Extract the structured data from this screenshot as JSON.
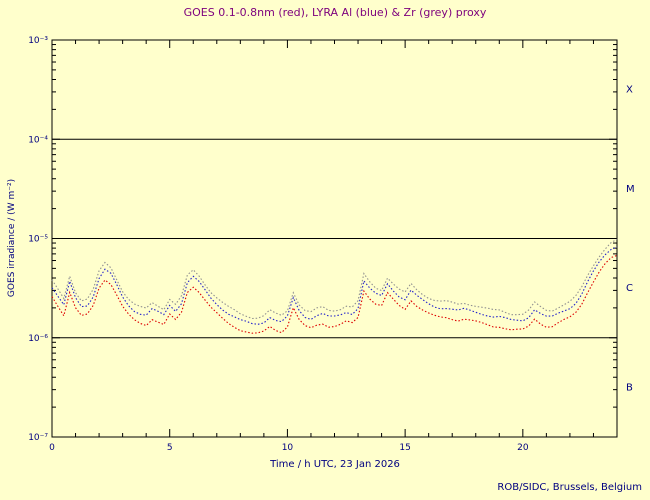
{
  "chart_data": {
    "type": "line",
    "title": "GOES 0.1-0.8nm (red), LYRA Al (blue) & Zr (grey) proxy",
    "xlabel": "Time / h UTC, 23 Jan 2026",
    "ylabel": "GOES irradiance / (W m⁻²)",
    "credit": "ROB/SIDC, Brussels, Belgium",
    "x_range": [
      0,
      24
    ],
    "y_log_range": [
      -7,
      -3
    ],
    "x_major_ticks": [
      0,
      5,
      10,
      15,
      20
    ],
    "y_tick_labels": [
      "10⁻³",
      "10⁻⁴",
      "10⁻⁵",
      "10⁻⁶",
      "10⁻⁷"
    ],
    "y_tick_exponents": [
      -3,
      -4,
      -5,
      -6,
      -7
    ],
    "boundary_exponents": [
      -4,
      -5,
      -6
    ],
    "class_bands": [
      {
        "label": "X",
        "mid_exponent": -3.5
      },
      {
        "label": "M",
        "mid_exponent": -4.5
      },
      {
        "label": "C",
        "mid_exponent": -5.5
      },
      {
        "label": "B",
        "mid_exponent": -6.5
      }
    ],
    "grid": false,
    "x_start": 0,
    "x_step": 0.25,
    "values_unit": "1e-6 W m^-2",
    "values": [
      2.6,
      2.1,
      1.7,
      2.9,
      2.0,
      1.65,
      1.7,
      2.1,
      3.2,
      3.9,
      3.5,
      2.7,
      2.05,
      1.7,
      1.5,
      1.4,
      1.35,
      1.55,
      1.45,
      1.35,
      1.7,
      1.5,
      1.8,
      2.9,
      3.3,
      2.9,
      2.4,
      2.0,
      1.75,
      1.55,
      1.4,
      1.3,
      1.2,
      1.15,
      1.1,
      1.1,
      1.15,
      1.3,
      1.2,
      1.15,
      1.3,
      2.0,
      1.5,
      1.3,
      1.25,
      1.35,
      1.4,
      1.3,
      1.3,
      1.35,
      1.45,
      1.4,
      1.6,
      3.0,
      2.5,
      2.2,
      2.1,
      2.8,
      2.4,
      2.1,
      1.95,
      2.4,
      2.1,
      1.9,
      1.75,
      1.65,
      1.6,
      1.6,
      1.55,
      1.5,
      1.55,
      1.5,
      1.45,
      1.4,
      1.35,
      1.3,
      1.3,
      1.25,
      1.2,
      1.2,
      1.2,
      1.3,
      1.55,
      1.4,
      1.3,
      1.3,
      1.4,
      1.5,
      1.6,
      1.8,
      2.2,
      2.9,
      3.7,
      4.6,
      5.5,
      6.3,
      6.7
    ],
    "series": [
      {
        "name": "GOES 0.1-0.8nm",
        "color": "#dd0000",
        "scale": 1.0
      },
      {
        "name": "LYRA Al proxy",
        "color": "#2222cc",
        "scale": 1.25
      },
      {
        "name": "LYRA Zr proxy",
        "color": "#909090",
        "scale": 1.45
      }
    ],
    "colors": {
      "background": "#ffffcc",
      "frame": "#000000",
      "title": "#7d007d",
      "axis_text": "#000080"
    }
  }
}
